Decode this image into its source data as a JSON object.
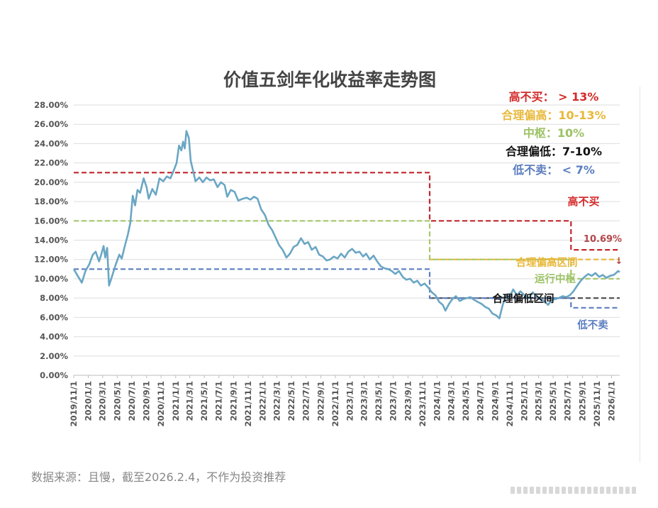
{
  "source_note": "数据来源：且慢，截至2026.2.4，不作为投资推荐",
  "legend": [
    {
      "text": "高不买： > 13%",
      "color": "#d42a2a"
    },
    {
      "text": "合理偏高：10-13%",
      "color": "#e8b83a"
    },
    {
      "text": "中枢：10%",
      "color": "#9cc265"
    },
    {
      "text": "合理偏低：7-10%",
      "color": "#111111"
    },
    {
      "text": "低不卖： < 7%",
      "color": "#5b7dc0"
    }
  ],
  "annotations": [
    {
      "text": "高不买",
      "color": "#d42a2a"
    },
    {
      "text": "10.69%",
      "color": "#b5474a"
    },
    {
      "text": "↓",
      "color": "#b5474a"
    },
    {
      "text": "合理偏高区间",
      "color": "#e8b83a"
    },
    {
      "text": "运行中枢",
      "color": "#9cc265"
    },
    {
      "text": "合理偏低区间",
      "color": "#111111"
    },
    {
      "text": "低不卖",
      "color": "#5b7dc0"
    }
  ],
  "chart_data": {
    "type": "line",
    "title": "价值五剑年化收益率走势图",
    "xlabel": "",
    "ylabel": "",
    "ylim": [
      0,
      28
    ],
    "grid": true,
    "y_ticks": [
      "0.00%",
      "2.00%",
      "4.00%",
      "6.00%",
      "8.00%",
      "10.00%",
      "12.00%",
      "14.00%",
      "16.00%",
      "18.00%",
      "20.00%",
      "22.00%",
      "24.00%",
      "26.00%",
      "28.00%"
    ],
    "x_ticks": [
      "2019/11/1",
      "2020/1/1",
      "2020/3/1",
      "2020/5/1",
      "2020/7/1",
      "2020/9/1",
      "2020/11/1",
      "2021/1/1",
      "2021/3/1",
      "2021/5/1",
      "2021/7/1",
      "2021/9/1",
      "2021/11/1",
      "2022/1/1",
      "2022/3/1",
      "2022/5/1",
      "2022/7/1",
      "2022/9/1",
      "2022/11/1",
      "2023/1/1",
      "2023/3/1",
      "2023/5/1",
      "2023/7/1",
      "2023/9/1",
      "2023/11/1",
      "2024/1/1",
      "2024/3/1",
      "2024/5/1",
      "2024/7/1",
      "2024/9/1",
      "2024/11/1",
      "2025/1/1",
      "2025/3/1",
      "2025/5/1",
      "2025/7/1",
      "2025/9/1",
      "2025/11/1",
      "2026/1/1"
    ],
    "x_start": "2019/11/1",
    "x_end": "2026/2/4",
    "series": [
      {
        "color": "#6aa6c4",
        "points": [
          [
            "2019/11/1",
            11.0
          ],
          [
            "2019/11/20",
            10.2
          ],
          [
            "2019/12/5",
            9.6
          ],
          [
            "2019/12/20",
            10.8
          ],
          [
            "2020/1/5",
            11.5
          ],
          [
            "2020/1/20",
            12.5
          ],
          [
            "2020/2/1",
            12.8
          ],
          [
            "2020/2/15",
            11.8
          ],
          [
            "2020/2/25",
            12.6
          ],
          [
            "2020/3/5",
            13.4
          ],
          [
            "2020/3/12",
            12.2
          ],
          [
            "2020/3/20",
            13.2
          ],
          [
            "2020/3/28",
            9.3
          ],
          [
            "2020/4/10",
            10.3
          ],
          [
            "2020/4/25",
            11.5
          ],
          [
            "2020/5/10",
            12.5
          ],
          [
            "2020/5/20",
            12.1
          ],
          [
            "2020/6/1",
            13.3
          ],
          [
            "2020/6/15",
            14.6
          ],
          [
            "2020/6/25",
            15.8
          ],
          [
            "2020/7/5",
            18.6
          ],
          [
            "2020/7/15",
            17.6
          ],
          [
            "2020/7/25",
            19.2
          ],
          [
            "2020/8/5",
            18.9
          ],
          [
            "2020/8/20",
            20.4
          ],
          [
            "2020/9/1",
            19.5
          ],
          [
            "2020/9/10",
            18.3
          ],
          [
            "2020/9/25",
            19.3
          ],
          [
            "2020/10/10",
            18.7
          ],
          [
            "2020/10/25",
            20.4
          ],
          [
            "2020/11/10",
            20.1
          ],
          [
            "2020/11/25",
            20.6
          ],
          [
            "2020/12/10",
            20.4
          ],
          [
            "2020/12/25",
            21.3
          ],
          [
            "2021/1/5",
            22.0
          ],
          [
            "2021/1/15",
            23.8
          ],
          [
            "2021/1/25",
            23.3
          ],
          [
            "2021/2/1",
            24.2
          ],
          [
            "2021/2/8",
            23.5
          ],
          [
            "2021/2/15",
            25.3
          ],
          [
            "2021/2/25",
            24.6
          ],
          [
            "2021/3/5",
            22.2
          ],
          [
            "2021/3/15",
            21.2
          ],
          [
            "2021/3/25",
            20.1
          ],
          [
            "2021/4/10",
            20.5
          ],
          [
            "2021/4/25",
            20.0
          ],
          [
            "2021/5/10",
            20.5
          ],
          [
            "2021/5/25",
            20.2
          ],
          [
            "2021/6/10",
            20.3
          ],
          [
            "2021/6/25",
            19.5
          ],
          [
            "2021/7/10",
            20.0
          ],
          [
            "2021/7/25",
            19.7
          ],
          [
            "2021/8/5",
            18.5
          ],
          [
            "2021/8/20",
            19.2
          ],
          [
            "2021/9/5",
            19.0
          ],
          [
            "2021/9/20",
            18.1
          ],
          [
            "2021/10/10",
            18.3
          ],
          [
            "2021/10/25",
            18.4
          ],
          [
            "2021/11/10",
            18.2
          ],
          [
            "2021/11/25",
            18.5
          ],
          [
            "2021/12/10",
            18.3
          ],
          [
            "2021/12/25",
            17.2
          ],
          [
            "2022/1/10",
            16.6
          ],
          [
            "2022/1/25",
            15.6
          ],
          [
            "2022/2/10",
            15.0
          ],
          [
            "2022/2/25",
            14.2
          ],
          [
            "2022/3/10",
            13.5
          ],
          [
            "2022/3/25",
            13.0
          ],
          [
            "2022/4/10",
            12.2
          ],
          [
            "2022/4/25",
            12.6
          ],
          [
            "2022/5/10",
            13.3
          ],
          [
            "2022/5/25",
            13.5
          ],
          [
            "2022/6/10",
            14.2
          ],
          [
            "2022/6/25",
            13.6
          ],
          [
            "2022/7/10",
            13.8
          ],
          [
            "2022/7/25",
            13.0
          ],
          [
            "2022/8/10",
            13.3
          ],
          [
            "2022/8/25",
            12.5
          ],
          [
            "2022/9/10",
            12.3
          ],
          [
            "2022/9/25",
            11.9
          ],
          [
            "2022/10/10",
            12.0
          ],
          [
            "2022/10/25",
            12.3
          ],
          [
            "2022/11/10",
            12.1
          ],
          [
            "2022/11/25",
            12.6
          ],
          [
            "2022/12/10",
            12.2
          ],
          [
            "2022/12/25",
            12.8
          ],
          [
            "2023/1/10",
            13.1
          ],
          [
            "2023/1/25",
            12.7
          ],
          [
            "2023/2/10",
            12.8
          ],
          [
            "2023/2/25",
            12.3
          ],
          [
            "2023/3/10",
            12.6
          ],
          [
            "2023/3/25",
            12.0
          ],
          [
            "2023/4/10",
            12.4
          ],
          [
            "2023/4/25",
            11.8
          ],
          [
            "2023/5/10",
            11.3
          ],
          [
            "2023/5/25",
            11.1
          ],
          [
            "2023/6/10",
            11.0
          ],
          [
            "2023/6/25",
            10.8
          ],
          [
            "2023/7/10",
            10.5
          ],
          [
            "2023/7/25",
            10.8
          ],
          [
            "2023/8/10",
            10.2
          ],
          [
            "2023/8/25",
            9.9
          ],
          [
            "2023/9/10",
            10.0
          ],
          [
            "2023/9/25",
            9.6
          ],
          [
            "2023/10/10",
            9.8
          ],
          [
            "2023/10/25",
            9.3
          ],
          [
            "2023/11/10",
            9.5
          ],
          [
            "2023/11/25",
            9.1
          ],
          [
            "2023/12/10",
            8.6
          ],
          [
            "2023/12/25",
            8.3
          ],
          [
            "2024/1/10",
            7.6
          ],
          [
            "2024/1/25",
            7.3
          ],
          [
            "2024/2/5",
            6.7
          ],
          [
            "2024/2/20",
            7.4
          ],
          [
            "2024/3/5",
            7.9
          ],
          [
            "2024/3/20",
            8.2
          ],
          [
            "2024/4/5",
            7.7
          ],
          [
            "2024/4/20",
            7.9
          ],
          [
            "2024/5/5",
            8.0
          ],
          [
            "2024/5/20",
            8.1
          ],
          [
            "2024/6/5",
            7.8
          ],
          [
            "2024/6/20",
            7.6
          ],
          [
            "2024/7/5",
            7.4
          ],
          [
            "2024/7/20",
            7.1
          ],
          [
            "2024/8/5",
            6.9
          ],
          [
            "2024/8/20",
            6.4
          ],
          [
            "2024/9/5",
            6.2
          ],
          [
            "2024/9/18",
            5.9
          ],
          [
            "2024/10/1",
            7.2
          ],
          [
            "2024/10/15",
            8.3
          ],
          [
            "2024/10/30",
            8.1
          ],
          [
            "2024/11/15",
            8.9
          ],
          [
            "2024/11/30",
            8.3
          ],
          [
            "2024/12/15",
            8.7
          ],
          [
            "2025/1/1",
            8.3
          ],
          [
            "2025/1/20",
            8.0
          ],
          [
            "2025/2/5",
            8.6
          ],
          [
            "2025/2/20",
            8.2
          ],
          [
            "2025/3/10",
            7.9
          ],
          [
            "2025/3/25",
            7.7
          ],
          [
            "2025/4/10",
            7.3
          ],
          [
            "2025/4/25",
            7.8
          ],
          [
            "2025/5/10",
            7.9
          ],
          [
            "2025/5/25",
            8.0
          ],
          [
            "2025/6/10",
            8.2
          ],
          [
            "2025/6/25",
            8.1
          ],
          [
            "2025/7/10",
            8.3
          ],
          [
            "2025/7/25",
            8.7
          ],
          [
            "2025/8/10",
            9.3
          ],
          [
            "2025/8/25",
            9.8
          ],
          [
            "2025/9/10",
            10.2
          ],
          [
            "2025/9/25",
            10.5
          ],
          [
            "2025/10/10",
            10.3
          ],
          [
            "2025/10/25",
            10.6
          ],
          [
            "2025/11/10",
            10.2
          ],
          [
            "2025/11/25",
            10.4
          ],
          [
            "2025/12/10",
            10.1
          ],
          [
            "2025/12/25",
            10.3
          ],
          [
            "2026/1/10",
            10.4
          ],
          [
            "2026/1/20",
            10.6
          ],
          [
            "2026/1/28",
            10.8
          ],
          [
            "2026/2/4",
            10.69
          ]
        ]
      }
    ],
    "threshold_lines": [
      {
        "color": "#c0272d",
        "steps": [
          [
            "2019/11/1",
            21
          ],
          [
            "2023/12/1",
            21
          ],
          [
            "2023/12/1",
            16
          ],
          [
            "2025/7/15",
            16
          ],
          [
            "2025/7/15",
            13
          ],
          [
            "2026/2/4",
            13
          ]
        ]
      },
      {
        "color": "#e8b83a",
        "steps": [
          [
            "2023/12/1",
            12
          ],
          [
            "2026/2/4",
            12
          ]
        ]
      },
      {
        "color": "#a7c66b",
        "steps": [
          [
            "2019/11/1",
            16
          ],
          [
            "2023/12/1",
            16
          ],
          [
            "2023/12/1",
            12
          ],
          [
            "2025/7/15",
            12
          ],
          [
            "2025/7/15",
            10
          ],
          [
            "2026/2/4",
            10
          ]
        ]
      },
      {
        "color": "#555555",
        "steps": [
          [
            "2023/12/1",
            8
          ],
          [
            "2026/2/4",
            8
          ]
        ]
      },
      {
        "color": "#5b7dc0",
        "steps": [
          [
            "2019/11/1",
            11
          ],
          [
            "2023/12/1",
            11
          ],
          [
            "2023/12/1",
            8
          ],
          [
            "2025/7/15",
            8
          ],
          [
            "2025/7/15",
            7
          ],
          [
            "2026/2/4",
            7
          ]
        ]
      }
    ]
  }
}
